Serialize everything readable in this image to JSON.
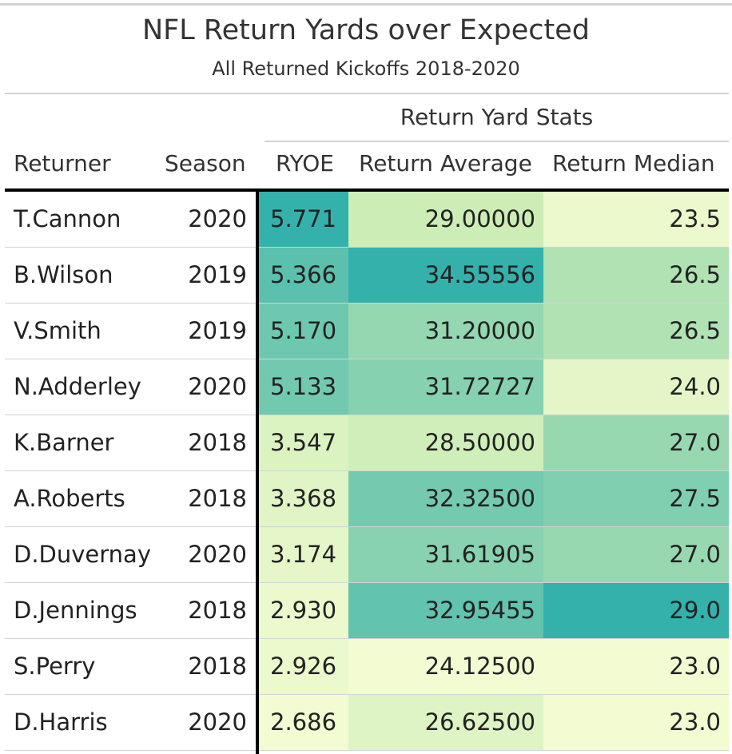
{
  "header": {
    "title": "NFL Return Yards over Expected",
    "subtitle": "All Returned Kickoffs 2018-2020",
    "spanner": "Return Yard Stats"
  },
  "columns": {
    "returner": "Returner",
    "season": "Season",
    "ryoe": "RYOE",
    "avg": "Return Average",
    "median": "Return Median"
  },
  "rows": [
    {
      "returner": "T.Cannon",
      "season": "2020",
      "ryoe": "5.771",
      "avg": "29.00000",
      "median": "23.5"
    },
    {
      "returner": "B.Wilson",
      "season": "2019",
      "ryoe": "5.366",
      "avg": "34.55556",
      "median": "26.5"
    },
    {
      "returner": "V.Smith",
      "season": "2019",
      "ryoe": "5.170",
      "avg": "31.20000",
      "median": "26.5"
    },
    {
      "returner": "N.Adderley",
      "season": "2020",
      "ryoe": "5.133",
      "avg": "31.72727",
      "median": "24.0"
    },
    {
      "returner": "K.Barner",
      "season": "2018",
      "ryoe": "3.547",
      "avg": "28.50000",
      "median": "27.0"
    },
    {
      "returner": "A.Roberts",
      "season": "2018",
      "ryoe": "3.368",
      "avg": "32.32500",
      "median": "27.5"
    },
    {
      "returner": "D.Duvernay",
      "season": "2020",
      "ryoe": "3.174",
      "avg": "31.61905",
      "median": "27.0"
    },
    {
      "returner": "D.Jennings",
      "season": "2018",
      "ryoe": "2.930",
      "avg": "32.95455",
      "median": "29.0"
    },
    {
      "returner": "S.Perry",
      "season": "2018",
      "ryoe": "2.926",
      "avg": "24.12500",
      "median": "23.0"
    },
    {
      "returner": "D.Harris",
      "season": "2020",
      "ryoe": "2.686",
      "avg": "26.62500",
      "median": "23.0"
    }
  ],
  "color_scale": {
    "low": "#f2fbd2",
    "mid": "#c9ecb4",
    "high": "#34b1ab"
  }
}
